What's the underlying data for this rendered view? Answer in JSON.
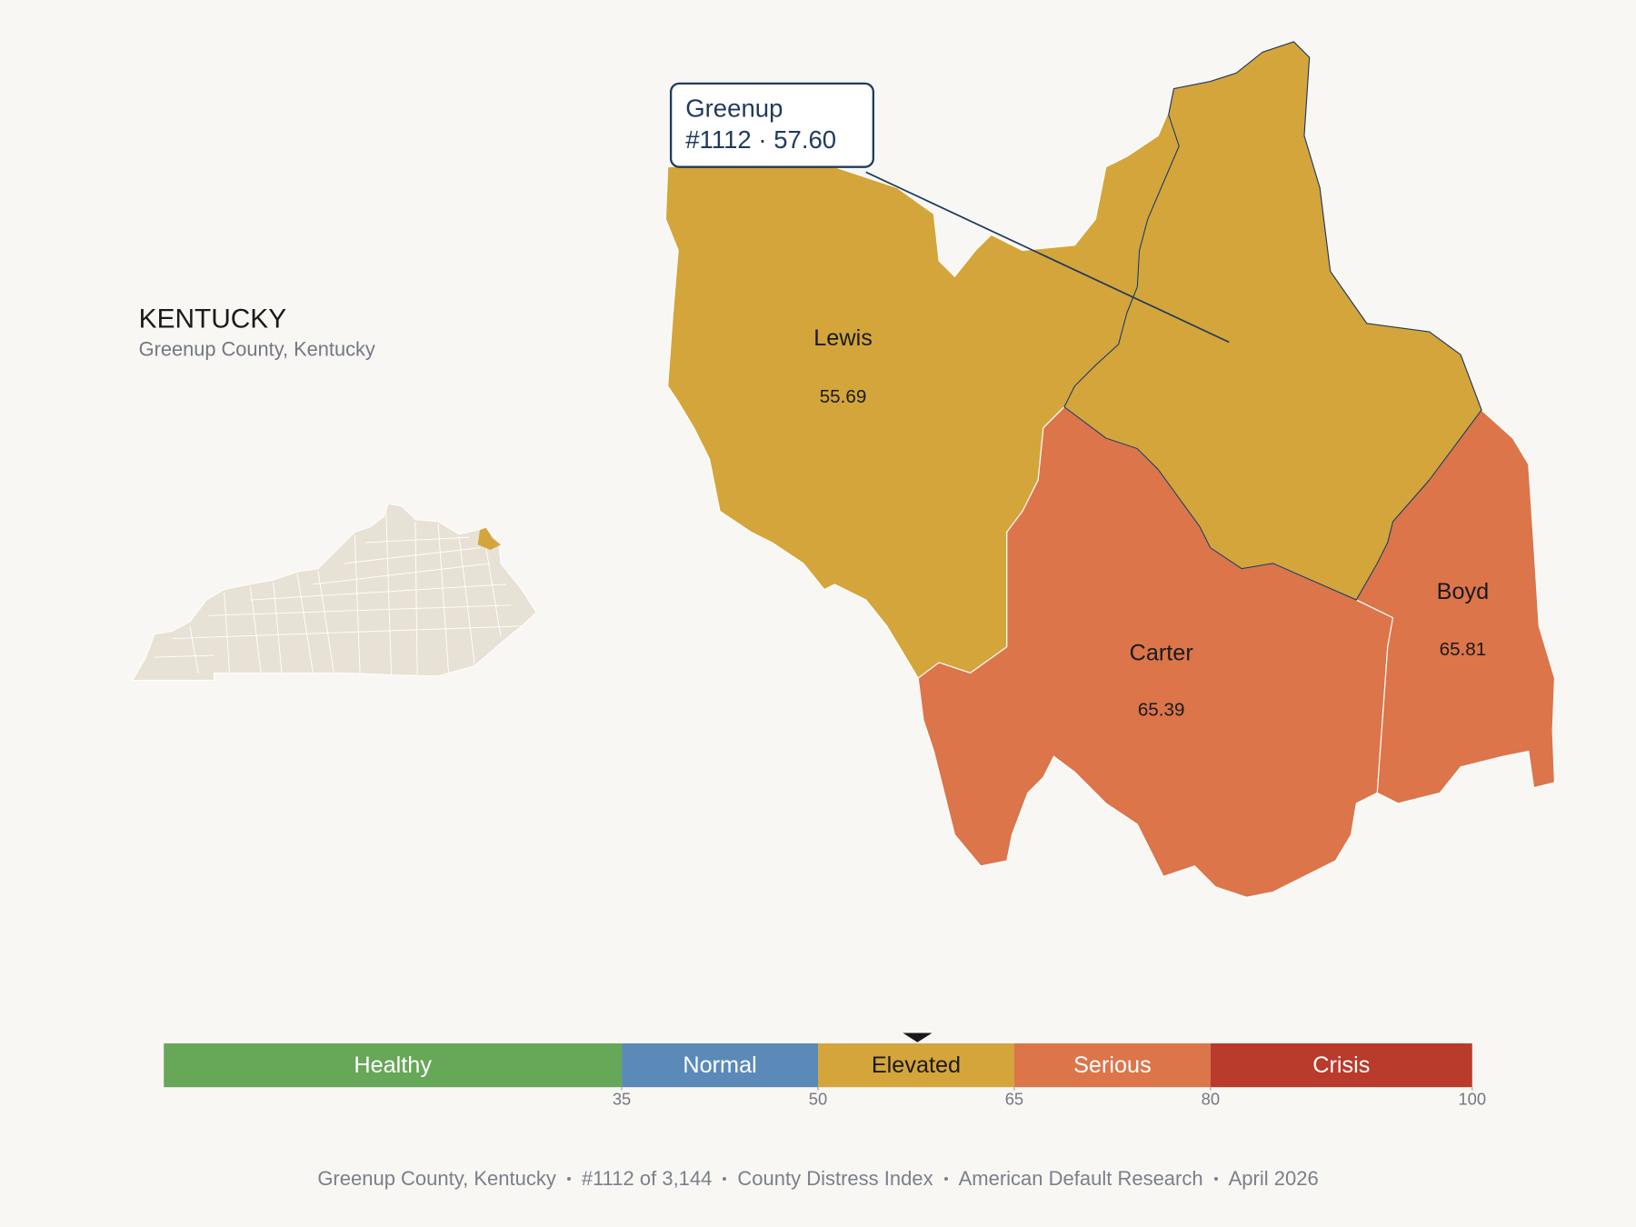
{
  "header": {
    "title": "KENTUCKY",
    "subtitle": "Greenup County, Kentucky"
  },
  "selected": {
    "name": "Greenup",
    "detail": "#1112 · 57.60",
    "score": 57.6
  },
  "counties": [
    {
      "name": "Lewis",
      "score": 55.69
    },
    {
      "name": "Carter",
      "score": 65.39
    },
    {
      "name": "Boyd",
      "score": 65.81
    }
  ],
  "legend": {
    "range": [
      0,
      100
    ],
    "bins": [
      {
        "label": "Healthy",
        "color": "#67a758"
      },
      {
        "label": "Normal",
        "color": "#5b8ab8"
      },
      {
        "label": "Elevated",
        "color": "#d4a53b"
      },
      {
        "label": "Serious",
        "color": "#dc754a"
      },
      {
        "label": "Crisis",
        "color": "#b83b2c"
      }
    ],
    "ticks": [
      35,
      50,
      65,
      80,
      100
    ]
  },
  "footer": [
    "Greenup County, Kentucky",
    "#1112 of 3,144",
    "County Distress Index",
    "American Default Research",
    "April 2026"
  ]
}
